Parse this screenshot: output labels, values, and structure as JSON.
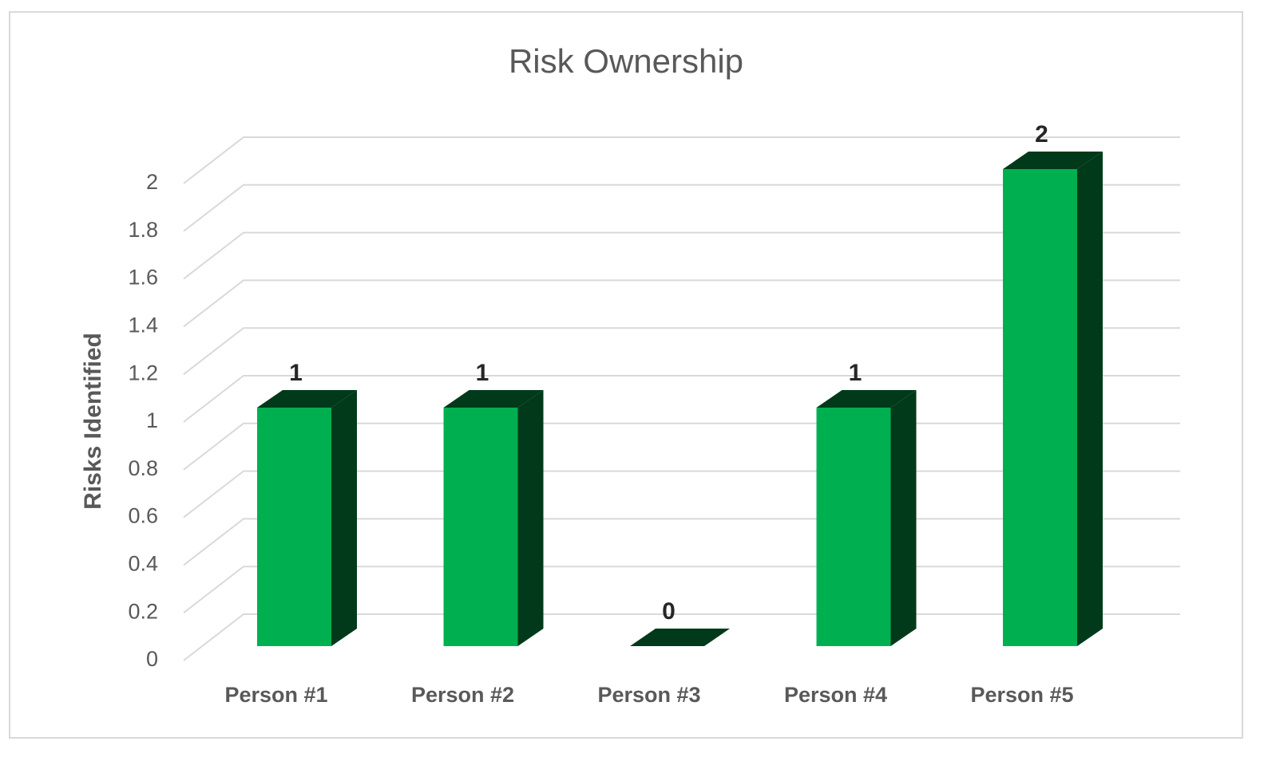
{
  "chart_data": {
    "type": "bar3d",
    "title": "Risk Ownership",
    "y_label": "Risks Identified",
    "categories": [
      "Person #1",
      "Person #2",
      "Person #3",
      "Person #4",
      "Person #5"
    ],
    "values": [
      1,
      1,
      0,
      1,
      2
    ],
    "color": "#00b050",
    "side_color": "#003a1a",
    "ylim": [
      0,
      2
    ],
    "yticks": [
      0,
      0.2,
      0.4,
      0.6,
      0.8,
      1,
      1.2,
      1.4,
      1.6,
      1.8,
      2
    ],
    "grid": true
  }
}
